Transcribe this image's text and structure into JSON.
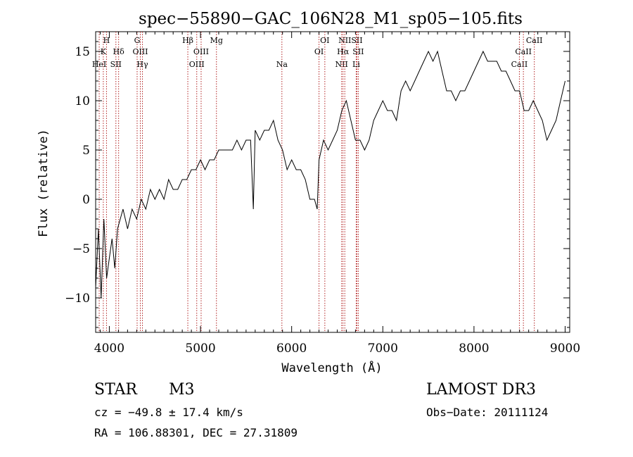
{
  "chart_data": {
    "type": "line",
    "title": "spec−55890−GAC_106N28_M1_sp05−105.fits",
    "xlabel": "Wavelength (Å)",
    "ylabel": "Flux (relative)",
    "xlim": [
      3850,
      9050
    ],
    "ylim": [
      -13.5,
      17
    ],
    "xticks": [
      4000,
      5000,
      6000,
      7000,
      8000,
      9000
    ],
    "yticks": [
      -10,
      -5,
      0,
      5,
      10,
      15
    ],
    "ytick_labels": [
      "−10",
      "−5",
      "0",
      "5",
      "10",
      "15"
    ],
    "series": [
      {
        "name": "flux",
        "x": [
          3850,
          3880,
          3910,
          3940,
          3970,
          4000,
          4030,
          4060,
          4090,
          4120,
          4150,
          4200,
          4250,
          4300,
          4350,
          4400,
          4450,
          4500,
          4550,
          4600,
          4650,
          4700,
          4750,
          4800,
          4850,
          4900,
          4950,
          5000,
          5050,
          5100,
          5150,
          5200,
          5250,
          5300,
          5350,
          5400,
          5450,
          5500,
          5550,
          5580,
          5600,
          5650,
          5700,
          5750,
          5800,
          5850,
          5900,
          5950,
          6000,
          6050,
          6100,
          6150,
          6200,
          6250,
          6280,
          6300,
          6350,
          6400,
          6450,
          6500,
          6550,
          6600,
          6650,
          6700,
          6750,
          6800,
          6850,
          6900,
          6950,
          7000,
          7050,
          7100,
          7150,
          7200,
          7250,
          7300,
          7350,
          7400,
          7450,
          7500,
          7550,
          7600,
          7650,
          7700,
          7750,
          7800,
          7850,
          7900,
          7950,
          8000,
          8050,
          8100,
          8150,
          8200,
          8250,
          8300,
          8350,
          8400,
          8450,
          8500,
          8550,
          8600,
          8650,
          8700,
          8750,
          8800,
          8850,
          8900,
          8950,
          9000
        ],
        "values": [
          -9,
          -3,
          -10,
          -2,
          -8,
          -6,
          -4,
          -7,
          -3,
          -2,
          -1,
          -3,
          -1,
          -2,
          0,
          -1,
          1,
          0,
          1,
          0,
          2,
          1,
          1,
          2,
          2,
          3,
          3,
          4,
          3,
          4,
          4,
          5,
          5,
          5,
          5,
          6,
          5,
          6,
          6,
          -1,
          7,
          6,
          7,
          7,
          8,
          6,
          5,
          3,
          4,
          3,
          3,
          2,
          0,
          0,
          -1,
          4,
          6,
          5,
          6,
          7,
          9,
          10,
          8,
          6,
          6,
          5,
          6,
          8,
          9,
          10,
          9,
          9,
          8,
          11,
          12,
          11,
          12,
          13,
          14,
          15,
          14,
          15,
          13,
          11,
          11,
          10,
          11,
          11,
          12,
          13,
          14,
          15,
          14,
          14,
          14,
          13,
          13,
          12,
          11,
          11,
          9,
          9,
          10,
          9,
          8,
          6,
          7,
          8,
          10,
          12
        ]
      }
    ],
    "spectral_lines": [
      {
        "label": "HeI",
        "x": 3889,
        "row": 3
      },
      {
        "label": "K",
        "x": 3934,
        "row": 2
      },
      {
        "label": "H",
        "x": 3969,
        "row": 1
      },
      {
        "label": "SII",
        "x": 4072,
        "row": 3
      },
      {
        "label": "Hδ",
        "x": 4102,
        "row": 2
      },
      {
        "label": "G",
        "x": 4305,
        "row": 1
      },
      {
        "label": "OIII",
        "x": 4340,
        "row": 2
      },
      {
        "label": "Hγ",
        "x": 4363,
        "row": 3
      },
      {
        "label": "Hβ",
        "x": 4861,
        "row": 1
      },
      {
        "label": "OIII",
        "x": 4959,
        "row": 3
      },
      {
        "label": "OIII",
        "x": 5007,
        "row": 2
      },
      {
        "label": "Mg",
        "x": 5175,
        "row": 1
      },
      {
        "label": "Na",
        "x": 5893,
        "row": 3
      },
      {
        "label": "OI",
        "x": 6300,
        "row": 2
      },
      {
        "label": "OI",
        "x": 6364,
        "row": 1
      },
      {
        "label": "NII",
        "x": 6548,
        "row": 3
      },
      {
        "label": "NII",
        "x": 6583,
        "row": 1
      },
      {
        "label": "Hα",
        "x": 6563,
        "row": 2
      },
      {
        "label": "SII",
        "x": 6716,
        "row": 1
      },
      {
        "label": "SII",
        "x": 6731,
        "row": 2
      },
      {
        "label": "Li",
        "x": 6708,
        "row": 3
      },
      {
        "label": "CaII",
        "x": 8498,
        "row": 3
      },
      {
        "label": "CaII",
        "x": 8542,
        "row": 2
      },
      {
        "label": "CaII",
        "x": 8662,
        "row": 1
      }
    ],
    "line_color": "#b22222",
    "curve_color": "#000000"
  },
  "info": {
    "obj_class": "STAR",
    "subclass": "M3",
    "survey": "LAMOST DR3",
    "cz": "cz = −49.8 ± 17.4 km/s",
    "obs_date": "Obs−Date: 20111124",
    "radec": "RA = 106.88301, DEC =  27.31809"
  }
}
